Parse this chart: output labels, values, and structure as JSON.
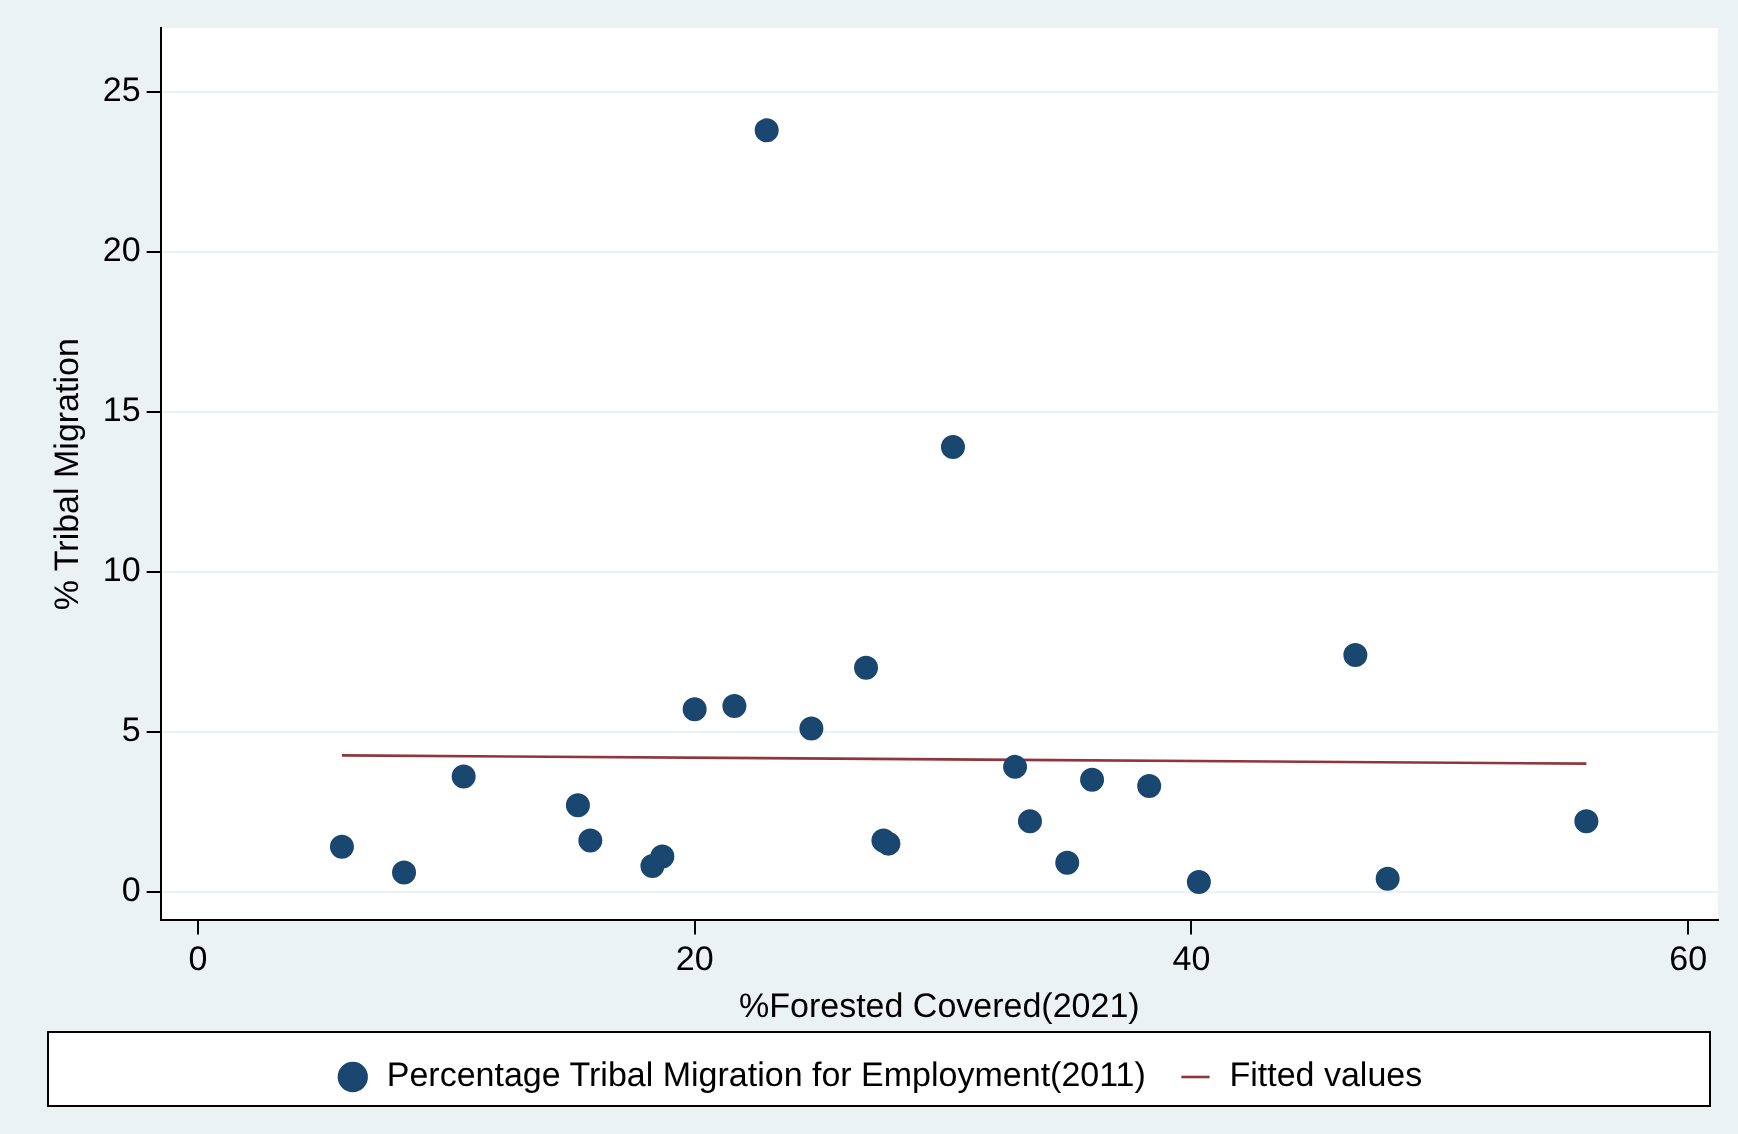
{
  "chart_data": {
    "type": "scatter",
    "xlabel": "%Forested Covered(2021)",
    "ylabel": "% Tribal Migration",
    "xlim": [
      -1.5,
      61.2
    ],
    "xticks": [
      0,
      20,
      40,
      60
    ],
    "ylim": [
      -0.9,
      27
    ],
    "yticks": [
      0,
      5,
      10,
      15,
      20,
      25
    ],
    "grid": "y",
    "legend": "bottom",
    "series": [
      {
        "name": "Percentage Tribal Migration for Employment(2011)",
        "marker": "circle",
        "color": "#1a476f",
        "x": [
          5.8,
          8.3,
          10.7,
          15.3,
          15.8,
          18.3,
          18.7,
          20.0,
          21.6,
          22.9,
          24.7,
          26.9,
          27.6,
          27.8,
          30.4,
          32.9,
          33.5,
          35.0,
          36.0,
          38.3,
          40.3,
          46.6,
          47.9,
          55.9
        ],
        "values": [
          1.4,
          0.6,
          3.6,
          2.7,
          1.6,
          0.8,
          1.1,
          5.7,
          5.8,
          23.8,
          5.1,
          7.0,
          1.6,
          1.5,
          13.9,
          3.9,
          2.2,
          0.9,
          3.5,
          3.3,
          0.3,
          7.4,
          0.4,
          2.2
        ]
      },
      {
        "name": "Fitted values",
        "type": "line",
        "marker": "none",
        "color": "#90353b",
        "x": [
          5.8,
          55.9
        ],
        "values": [
          4.26,
          4.0
        ]
      }
    ]
  }
}
